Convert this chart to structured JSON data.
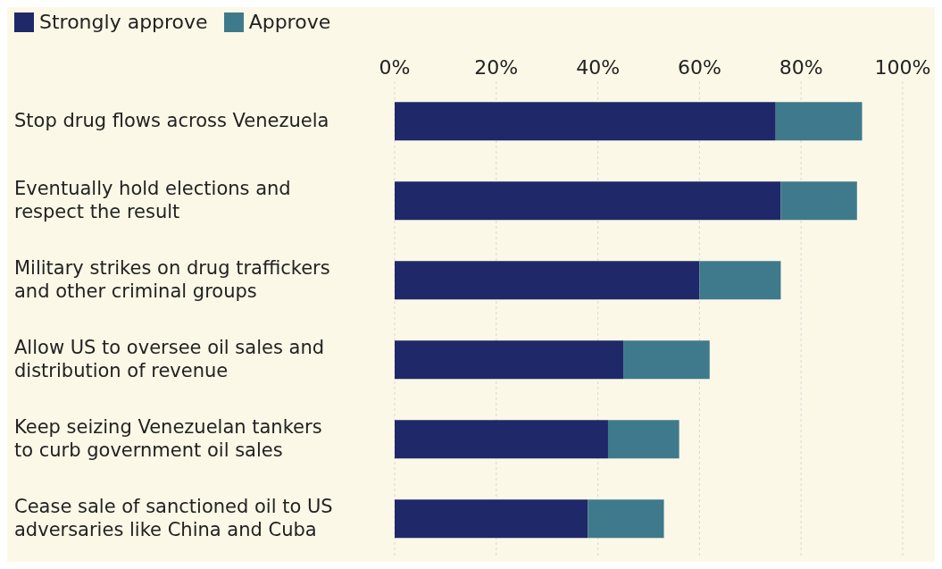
{
  "chart_data": {
    "type": "bar",
    "orientation": "horizontal",
    "stacked": true,
    "categories": [
      "Stop drug flows across Venezuela",
      "Eventually hold elections and respect the result",
      "Military strikes on drug traffickers and other criminal groups",
      "Allow US to oversee oil sales and distribution of revenue",
      "Keep seizing Venezuelan tankers to curb government oil sales",
      "Cease sale of sanctioned oil to US adversaries like China and Cuba"
    ],
    "series": [
      {
        "name": "Strongly approve",
        "color": "#1f2868",
        "values": [
          75,
          76,
          60,
          45,
          42,
          38
        ]
      },
      {
        "name": "Approve",
        "color": "#3f7a8c",
        "values": [
          17,
          15,
          16,
          17,
          14,
          15
        ]
      }
    ],
    "xlim": [
      0,
      100
    ],
    "xticks": [
      {
        "value": 0,
        "label": "0%"
      },
      {
        "value": 20,
        "label": "20%"
      },
      {
        "value": 40,
        "label": "40%"
      },
      {
        "value": 60,
        "label": "60%"
      },
      {
        "value": 80,
        "label": "80%"
      },
      {
        "value": 100,
        "label": "100%"
      }
    ],
    "grid": "x",
    "legend": "top left"
  }
}
